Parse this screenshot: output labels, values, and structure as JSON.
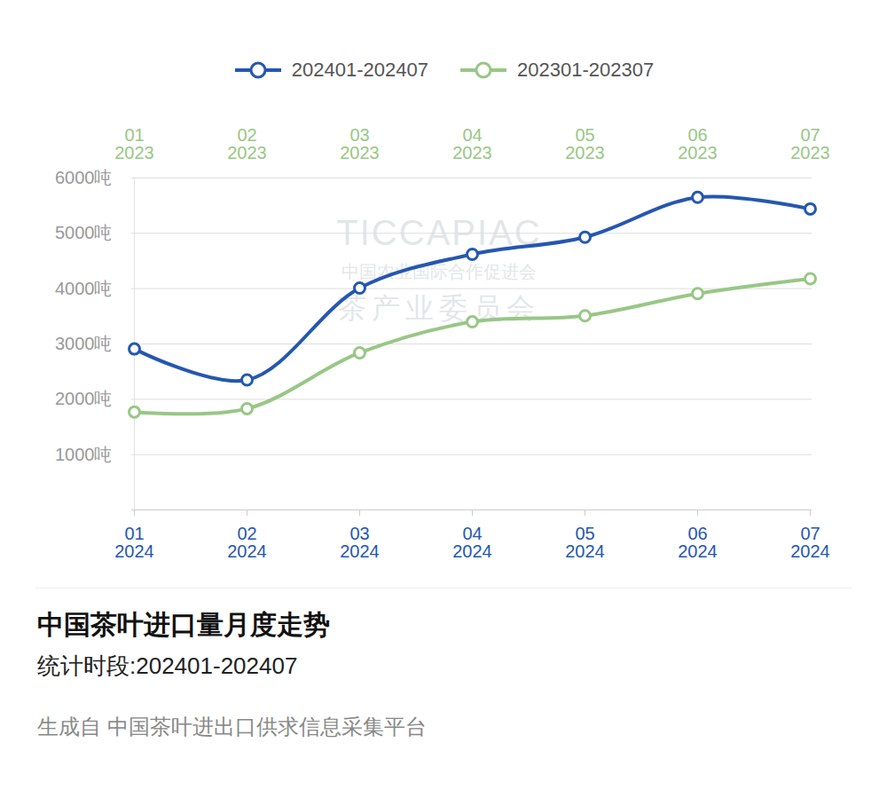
{
  "chart_data": {
    "type": "line",
    "title": "中国茶叶进口量月度走势",
    "subtitle": "统计时段:202401-202407",
    "caption": "生成自 中国茶叶进出口供求信息采集平台",
    "watermark": [
      "TICCAPIAC",
      "中国农业国际合作促进会",
      "茶产业委员会"
    ],
    "categories": [
      "01\n2024",
      "02\n2024",
      "03\n2024",
      "04\n2024",
      "05\n2024",
      "06\n2024",
      "07\n2024"
    ],
    "x2_categories": [
      "01\n2023",
      "02\n2023",
      "03\n2023",
      "04\n2023",
      "05\n2023",
      "06\n2023",
      "07\n2023"
    ],
    "series": [
      {
        "name": "202401-202407",
        "color": "#2557b0",
        "marker": "circle",
        "values": [
          2910,
          2350,
          4010,
          4620,
          4930,
          5650,
          5440
        ]
      },
      {
        "name": "202301-202307",
        "color": "#98c785",
        "marker": "circle",
        "axis": "x2",
        "values": [
          1770,
          1830,
          2840,
          3400,
          3510,
          3910,
          4180
        ]
      }
    ],
    "ylim": [
      0,
      6000
    ],
    "yticks": [
      {
        "value": 1000,
        "label": "1000吨"
      },
      {
        "value": 2000,
        "label": "2000吨"
      },
      {
        "value": 3000,
        "label": "3000吨"
      },
      {
        "value": 4000,
        "label": "4000吨"
      },
      {
        "value": 5000,
        "label": "5000吨"
      },
      {
        "value": 6000,
        "label": "6000吨"
      }
    ],
    "grid": true,
    "legend": "top"
  }
}
